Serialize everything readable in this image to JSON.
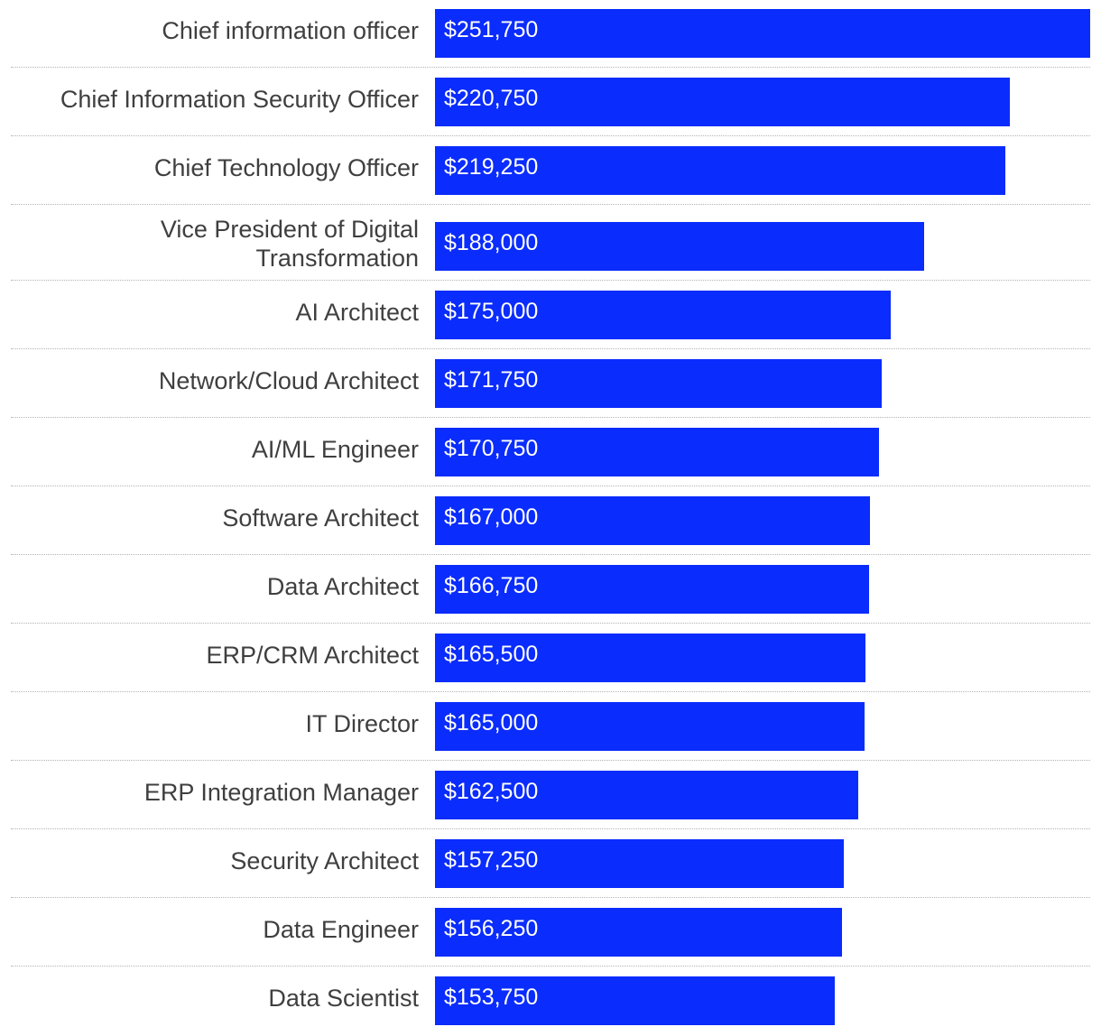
{
  "chart_data": {
    "type": "bar",
    "orientation": "horizontal",
    "categories": [
      "Chief information officer",
      "Chief Information Security Officer",
      "Chief Technology Officer",
      "Vice President of Digital Transformation",
      "AI Architect",
      "Network/Cloud Architect",
      "AI/ML Engineer",
      "Software Architect",
      "Data Architect",
      "ERP/CRM Architect",
      "IT Director",
      "ERP Integration Manager",
      "Security Architect",
      "Data Engineer",
      "Data Scientist"
    ],
    "values": [
      251750,
      220750,
      219250,
      188000,
      175000,
      171750,
      170750,
      167000,
      166750,
      165500,
      165000,
      162500,
      157250,
      156250,
      153750
    ],
    "value_labels": [
      "$251,750",
      "$220,750",
      "$219,250",
      "$188,000",
      "$175,000",
      "$171,750",
      "$170,750",
      "$167,000",
      "$166,750",
      "$165,500",
      "$165,000",
      "$162,500",
      "$157,250",
      "$156,250",
      "$153,750"
    ],
    "title": "",
    "xlabel": "",
    "ylabel": "",
    "bar_color": "#0a2cfc",
    "grid": false,
    "legend": "none"
  }
}
